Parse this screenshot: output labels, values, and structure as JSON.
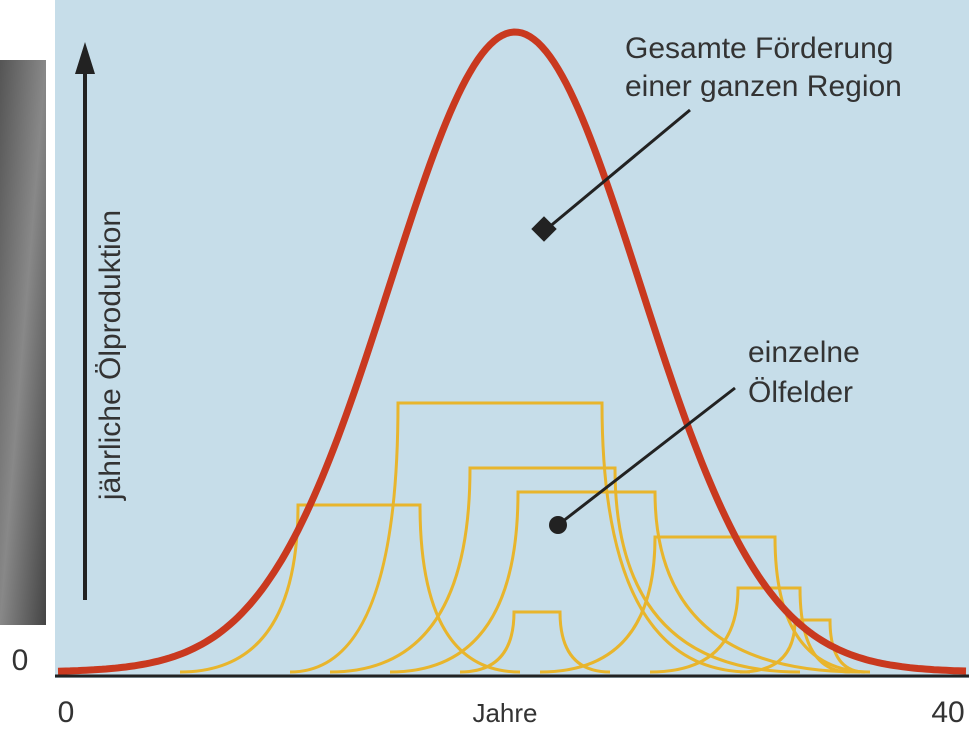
{
  "axes": {
    "y_label": "jährliche Ölproduktion",
    "x_label": "Jahre",
    "x_start": "0",
    "x_end": "40",
    "y_origin": "0"
  },
  "annotations": [
    {
      "lines": [
        "Gesamte Förderung",
        "einer ganzen Region"
      ]
    },
    {
      "lines": [
        "einzelne",
        "Ölfelder"
      ]
    }
  ]
}
